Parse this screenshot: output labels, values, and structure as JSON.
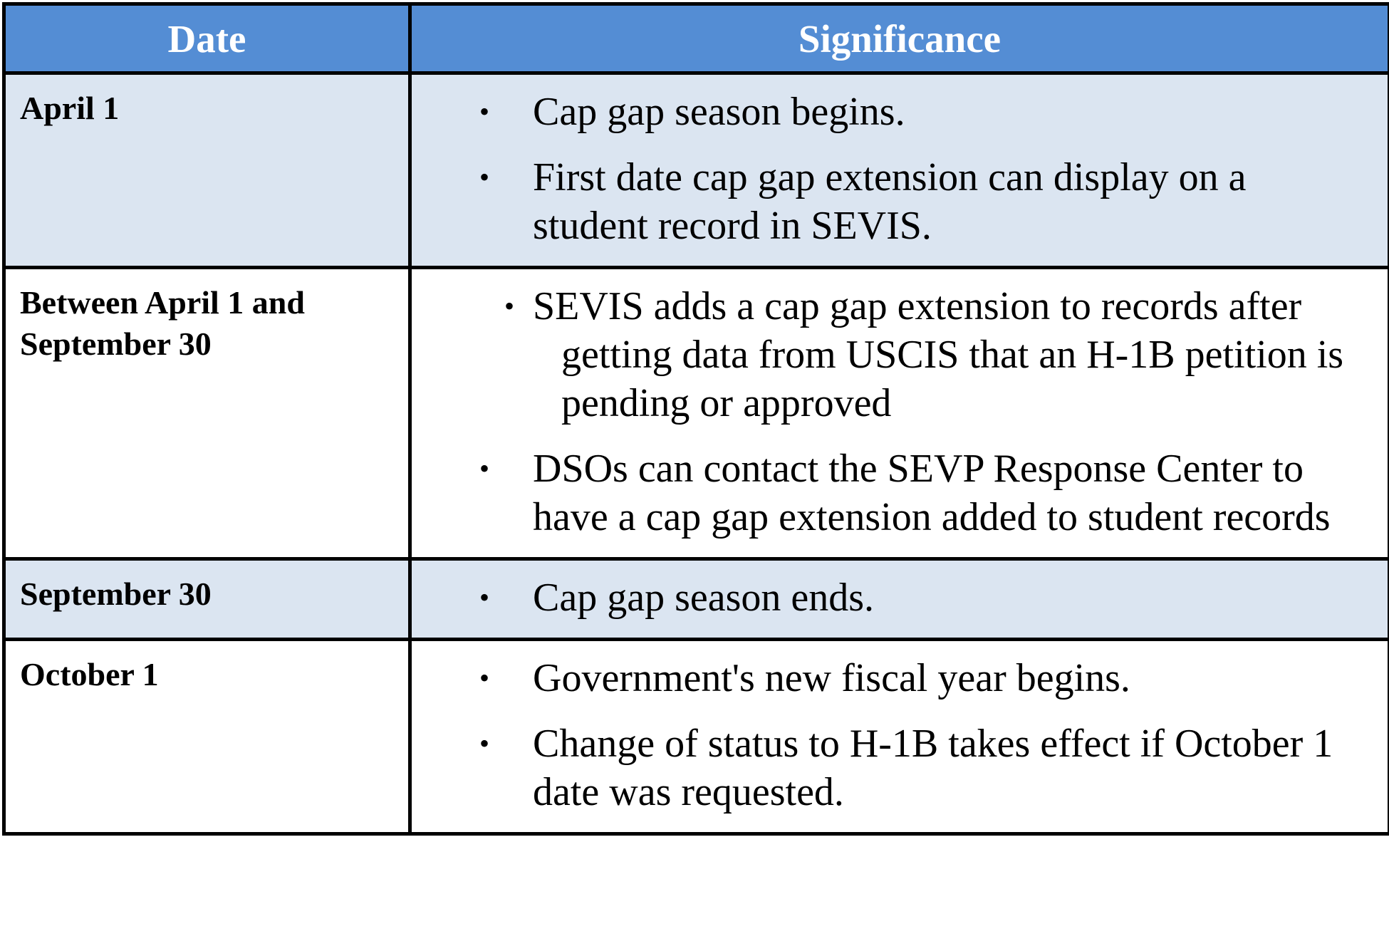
{
  "table": {
    "headers": {
      "date": "Date",
      "significance": "Significance"
    },
    "bullet_glyph": "•",
    "rows": [
      {
        "date": "April 1",
        "items": [
          "Cap gap season begins.",
          "First date cap gap extension can display on a student record in SEVIS."
        ]
      },
      {
        "date": "Between April 1 and September 30",
        "items": [
          "SEVIS adds a cap gap extension to records after getting data from USCIS that an H-1B petition is pending or approved",
          "DSOs can contact the SEVP Response Center to have a cap gap extension added to student records"
        ]
      },
      {
        "date": "September 30",
        "items": [
          "Cap gap season ends."
        ]
      },
      {
        "date": "October 1",
        "items": [
          "Government's new fiscal year begins.",
          "Change of status to H-1B takes effect if October 1 date was requested."
        ]
      }
    ],
    "colors": {
      "header_background": "#548dd4",
      "header_text": "#ffffff",
      "shaded_row": "#dbe5f1",
      "plain_row": "#ffffff",
      "border": "#000000"
    }
  }
}
